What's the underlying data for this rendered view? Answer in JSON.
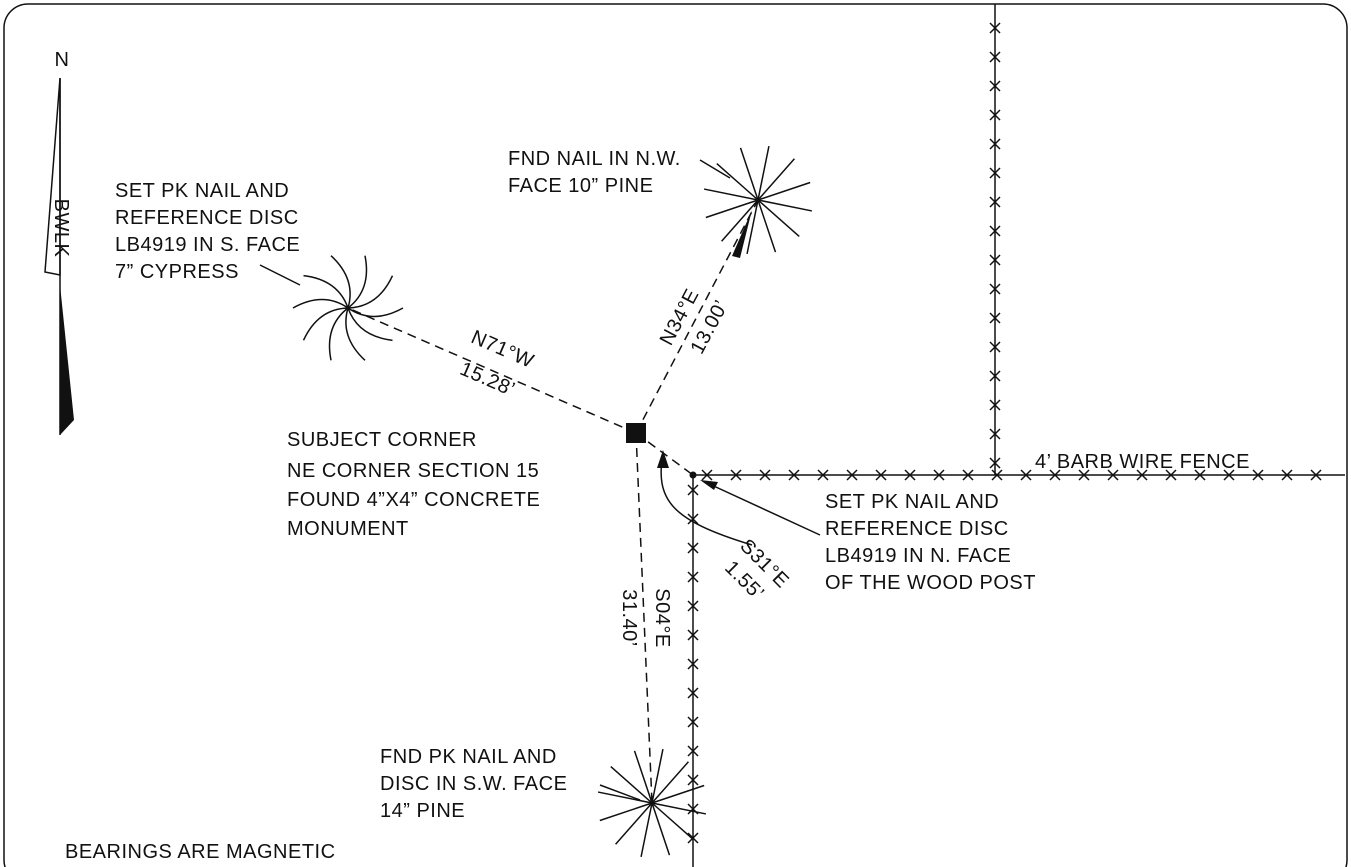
{
  "north": "N",
  "walk": "BWLK",
  "cypress_note": [
    "SET PK NAIL AND",
    "REFERENCE DISC",
    "LB4919 IN S. FACE",
    "7” CYPRESS"
  ],
  "nw_pine_note": [
    "FND NAIL IN N.W.",
    "FACE 10” PINE"
  ],
  "bearing_cypress": {
    "bearing": "N71°W",
    "distance": "15.28’"
  },
  "bearing_nw_pine": {
    "bearing": "N34°E",
    "distance": "13.00’"
  },
  "subject": {
    "title": "SUBJECT CORNER",
    "lines": [
      "NE CORNER SECTION 15",
      "FOUND 4”X4” CONCRETE",
      "MONUMENT"
    ]
  },
  "fence_label": "4’ BARB WIRE FENCE",
  "post_note": [
    "SET PK NAIL AND",
    "REFERENCE DISC",
    "LB4919 IN N. FACE",
    "OF THE WOOD POST"
  ],
  "bearing_post": {
    "bearing": "S31°E",
    "distance": "1.55’"
  },
  "bearing_sw_pine": {
    "bearing": "S04°E",
    "distance": "31.40’"
  },
  "sw_pine_note": [
    "FND PK NAIL AND",
    "DISC IN S.W. FACE",
    "14” PINE"
  ],
  "footer": "BEARINGS ARE MAGNETIC"
}
